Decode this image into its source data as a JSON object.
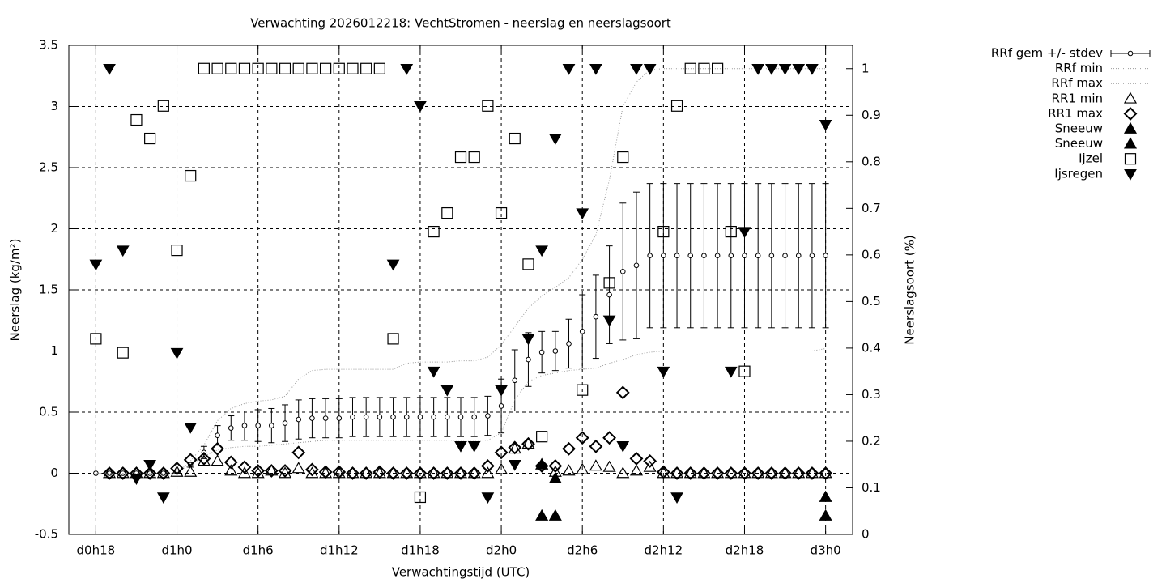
{
  "chart_data": {
    "type": "scatter",
    "title": "Verwachting 2026012218: VechtStromen - neerslag en neerslagsoort",
    "xlabel": "Verwachtingstijd (UTC)",
    "ylabel": "Neerslag (kg/m²)",
    "y2label": "Neerslagsoort (%)",
    "xlim": [
      16,
      74
    ],
    "xticks": [
      {
        "value": 18,
        "label": "d0h18"
      },
      {
        "value": 24,
        "label": "d1h0"
      },
      {
        "value": 30,
        "label": "d1h6"
      },
      {
        "value": 36,
        "label": "d1h12"
      },
      {
        "value": 42,
        "label": "d1h18"
      },
      {
        "value": 48,
        "label": "d2h0"
      },
      {
        "value": 54,
        "label": "d2h6"
      },
      {
        "value": 60,
        "label": "d2h12"
      },
      {
        "value": 66,
        "label": "d2h18"
      },
      {
        "value": 72,
        "label": "d3h0"
      }
    ],
    "ylim": [
      -0.5,
      3.5
    ],
    "yticks": [
      -0.5,
      0,
      0.5,
      1,
      1.5,
      2,
      2.5,
      3,
      3.5
    ],
    "y2lim": [
      0,
      1.05
    ],
    "y2ticks": [
      0,
      0.1,
      0.2,
      0.3,
      0.4,
      0.5,
      0.6,
      0.7,
      0.8,
      0.9,
      1
    ],
    "grid": true,
    "legend": "right",
    "series": [
      {
        "name": "RRf gem +/- stdev",
        "marker": "circle-errorbar",
        "color": "#000000",
        "x": [
          18,
          19,
          20,
          21,
          22,
          23,
          24,
          25,
          26,
          27,
          28,
          29,
          30,
          31,
          32,
          33,
          34,
          35,
          36,
          37,
          38,
          39,
          40,
          41,
          42,
          43,
          44,
          45,
          46,
          47,
          48,
          49,
          50,
          51,
          52,
          53,
          54,
          55,
          56,
          57,
          58,
          59,
          60,
          61,
          62,
          63,
          64,
          65,
          66,
          67,
          68,
          69,
          70,
          71,
          72
        ],
        "values": [
          0,
          0,
          0,
          0,
          0,
          0,
          0.01,
          0.07,
          0.17,
          0.31,
          0.37,
          0.39,
          0.39,
          0.39,
          0.41,
          0.44,
          0.45,
          0.45,
          0.45,
          0.46,
          0.46,
          0.46,
          0.46,
          0.46,
          0.46,
          0.46,
          0.46,
          0.46,
          0.46,
          0.47,
          0.55,
          0.76,
          0.93,
          0.99,
          1.0,
          1.06,
          1.16,
          1.28,
          1.46,
          1.65,
          1.7,
          1.78,
          1.78,
          1.78,
          1.78,
          1.78,
          1.78,
          1.78,
          1.78,
          1.78,
          1.78,
          1.78,
          1.78,
          1.78,
          1.78
        ],
        "errors": [
          0,
          0,
          0,
          0,
          0,
          0,
          0,
          0.02,
          0.05,
          0.08,
          0.1,
          0.12,
          0.13,
          0.14,
          0.15,
          0.16,
          0.16,
          0.16,
          0.16,
          0.16,
          0.16,
          0.16,
          0.16,
          0.16,
          0.16,
          0.16,
          0.16,
          0.16,
          0.16,
          0.16,
          0.22,
          0.25,
          0.22,
          0.17,
          0.16,
          0.2,
          0.3,
          0.34,
          0.4,
          0.56,
          0.6,
          0.59,
          0.59,
          0.59,
          0.59,
          0.59,
          0.59,
          0.59,
          0.59,
          0.59,
          0.59,
          0.59,
          0.59,
          0.59,
          0.59
        ]
      },
      {
        "name": "RRf min",
        "marker": "line-dotted",
        "color": "#999999",
        "x": [
          18,
          19,
          20,
          21,
          22,
          23,
          24,
          25,
          26,
          27,
          28,
          29,
          30,
          31,
          32,
          33,
          34,
          35,
          36,
          37,
          38,
          39,
          40,
          41,
          42,
          43,
          44,
          45,
          46,
          47,
          48,
          49,
          50,
          51,
          52,
          53,
          54,
          55,
          56,
          57,
          58,
          59,
          60,
          61,
          62,
          63,
          64,
          65,
          66,
          67,
          68,
          69,
          70,
          71,
          72
        ],
        "values": [
          0,
          0,
          0,
          0,
          0,
          0,
          0,
          0.07,
          0.14,
          0.19,
          0.21,
          0.22,
          0.22,
          0.23,
          0.24,
          0.25,
          0.26,
          0.27,
          0.27,
          0.27,
          0.27,
          0.27,
          0.27,
          0.27,
          0.27,
          0.27,
          0.27,
          0.27,
          0.27,
          0.27,
          0.33,
          0.6,
          0.75,
          0.8,
          0.82,
          0.84,
          0.85,
          0.86,
          0.9,
          0.93,
          0.97,
          0.99,
          1,
          1,
          1,
          1,
          1,
          1,
          1,
          1,
          1,
          1,
          1,
          1,
          1.02
        ]
      },
      {
        "name": "RRf max",
        "marker": "line-dotted",
        "color": "#999999",
        "x": [
          18,
          19,
          20,
          21,
          22,
          23,
          24,
          25,
          26,
          27,
          28,
          29,
          30,
          31,
          32,
          33,
          34,
          35,
          36,
          37,
          38,
          39,
          40,
          41,
          42,
          43,
          44,
          45,
          46,
          47,
          48,
          49,
          50,
          51,
          52,
          53,
          54,
          55,
          56,
          57,
          58,
          59,
          60,
          61,
          62,
          63,
          64,
          65,
          66,
          67,
          68,
          69,
          70,
          71,
          72
        ],
        "values": [
          0,
          0,
          0,
          0,
          0,
          0,
          0,
          0.1,
          0.23,
          0.43,
          0.53,
          0.57,
          0.59,
          0.6,
          0.63,
          0.77,
          0.84,
          0.85,
          0.85,
          0.85,
          0.85,
          0.85,
          0.85,
          0.9,
          0.91,
          0.91,
          0.91,
          0.92,
          0.92,
          0.95,
          1.05,
          1.2,
          1.35,
          1.45,
          1.52,
          1.6,
          1.75,
          1.95,
          2.4,
          3.0,
          3.2,
          3.3,
          3.31,
          3.31,
          3.31,
          3.31,
          3.31,
          3.31,
          3.31,
          3.31,
          3.31,
          3.31,
          3.31,
          3.31,
          3.31
        ]
      },
      {
        "name": "RR1 min",
        "marker": "triangle-open",
        "color": "#000000",
        "x": [
          18,
          19,
          20,
          21,
          22,
          23,
          24,
          25,
          26,
          27,
          28,
          29,
          30,
          31,
          32,
          33,
          34,
          35,
          36,
          37,
          38,
          39,
          40,
          41,
          42,
          43,
          44,
          45,
          46,
          47,
          48,
          49,
          50,
          51,
          52,
          53,
          54,
          55,
          56,
          57,
          58,
          59,
          60,
          61,
          62,
          63,
          64,
          65,
          66,
          67,
          68,
          69,
          70,
          71,
          72
        ],
        "values": [
          null,
          0,
          0,
          0,
          0,
          0,
          0.01,
          0.01,
          0.1,
          0.1,
          0.02,
          0,
          0,
          0.02,
          0,
          0.04,
          0,
          0,
          0,
          0,
          0,
          0,
          0,
          0,
          0,
          0,
          0,
          0,
          0,
          0,
          0.03,
          0.2,
          0.24,
          0.07,
          0.01,
          0.02,
          0.03,
          0.06,
          0.05,
          0,
          0.02,
          0.05,
          0,
          0,
          0,
          0,
          0,
          0,
          0,
          0,
          0,
          0,
          0,
          0,
          0
        ]
      },
      {
        "name": "RR1 max",
        "marker": "diamond-open",
        "color": "#000000",
        "x": [
          18,
          19,
          20,
          21,
          22,
          23,
          24,
          25,
          26,
          27,
          28,
          29,
          30,
          31,
          32,
          33,
          34,
          35,
          36,
          37,
          38,
          39,
          40,
          41,
          42,
          43,
          44,
          45,
          46,
          47,
          48,
          49,
          50,
          51,
          52,
          53,
          54,
          55,
          56,
          57,
          58,
          59,
          60,
          61,
          62,
          63,
          64,
          65,
          66,
          67,
          68,
          69,
          70,
          71,
          72
        ],
        "values": [
          null,
          0,
          0,
          0,
          0,
          0,
          0.04,
          0.11,
          0.12,
          0.2,
          0.09,
          0.05,
          0.02,
          0.02,
          0.02,
          0.17,
          0.03,
          0.01,
          0.01,
          0,
          0,
          0.01,
          0,
          0,
          0,
          0,
          0,
          0,
          0,
          0.06,
          0.17,
          0.21,
          0.24,
          0.06,
          0.06,
          0.2,
          0.29,
          0.22,
          0.29,
          0.66,
          0.12,
          0.1,
          0.01,
          0,
          0,
          0,
          0,
          0,
          0,
          0,
          0,
          0,
          0,
          0,
          0
        ]
      },
      {
        "name": "Sneeuw",
        "marker": "triangle-filled",
        "color": "#000000",
        "axis": "y2",
        "x": [
          51,
          52,
          72
        ],
        "values": [
          0.04,
          0.04,
          0.04
        ]
      },
      {
        "name": "Sneeuw",
        "marker": "triangle-filled",
        "color": "#000000",
        "axis": "y2",
        "x": [
          51,
          52,
          72
        ],
        "values": [
          0.15,
          0.12,
          0.08
        ]
      },
      {
        "name": "Ijzel",
        "marker": "square-open",
        "color": "#000000",
        "axis": "y2",
        "x": [
          18,
          20,
          21,
          22,
          23,
          24,
          25,
          26,
          27,
          28,
          29,
          30,
          31,
          32,
          33,
          34,
          35,
          36,
          37,
          38,
          39,
          40,
          42,
          43,
          44,
          45,
          46,
          47,
          48,
          49,
          50,
          51,
          54,
          56,
          57,
          60,
          61,
          62,
          63,
          64,
          65,
          66
        ],
        "values": [
          0.42,
          0.39,
          0.89,
          0.85,
          0.92,
          0.61,
          0.77,
          1,
          1,
          1,
          1,
          1,
          1,
          1,
          1,
          1,
          1,
          1,
          1,
          1,
          1,
          0.42,
          0.08,
          0.65,
          0.69,
          0.81,
          0.81,
          0.92,
          0.69,
          0.85,
          0.58,
          0.21,
          0.31,
          0.54,
          0.81,
          0.65,
          0.92,
          1,
          1,
          1,
          0.65,
          0.35
        ]
      },
      {
        "name": "Ijsregen",
        "marker": "triangle-down-filled",
        "color": "#000000",
        "axis": "y2",
        "x": [
          18,
          19,
          20,
          21,
          22,
          23,
          24,
          25,
          40,
          41,
          42,
          43,
          44,
          45,
          46,
          47,
          48,
          49,
          50,
          51,
          52,
          53,
          54,
          55,
          56,
          57,
          58,
          59,
          60,
          61,
          65,
          66,
          67,
          68,
          69,
          70,
          71,
          72
        ],
        "values": [
          0.58,
          1,
          0.61,
          0.12,
          0.15,
          0.08,
          0.39,
          0.23,
          0.58,
          1,
          0.92,
          0.35,
          0.31,
          0.19,
          0.19,
          0.08,
          0.31,
          0.15,
          0.42,
          0.61,
          0.85,
          1,
          0.69,
          1,
          0.46,
          0.19,
          1,
          1,
          0.35,
          0.08,
          0.35,
          0.65,
          1,
          1,
          1,
          1,
          1,
          0.88
        ]
      }
    ]
  }
}
